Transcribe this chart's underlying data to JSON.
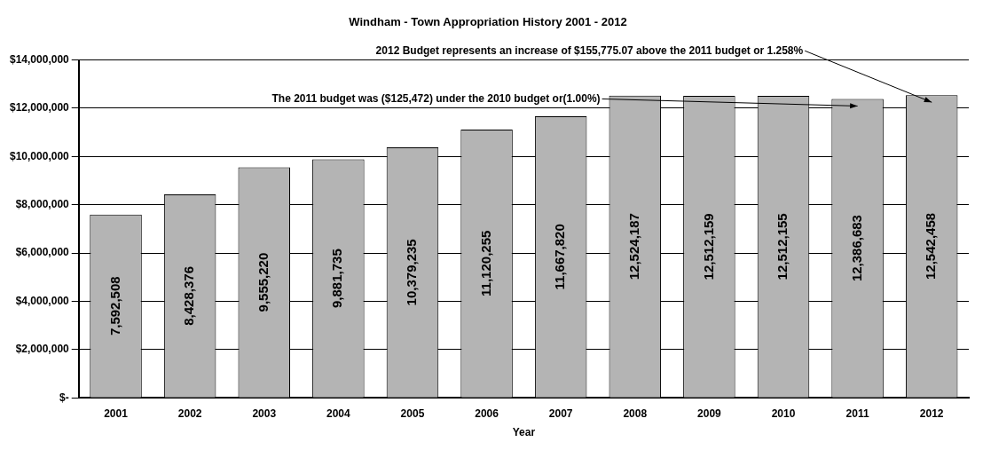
{
  "chart_data": {
    "type": "bar",
    "title": "Windham - Town Appropriation History 2001 - 2012",
    "xlabel": "Year",
    "categories": [
      "2001",
      "2002",
      "2003",
      "2004",
      "2005",
      "2006",
      "2007",
      "2008",
      "2009",
      "2010",
      "2011",
      "2012"
    ],
    "values": [
      7592508,
      8428376,
      9555220,
      9881735,
      10379235,
      11120255,
      11667820,
      12524187,
      12512159,
      12512155,
      12386683,
      12542458
    ],
    "color": "#b4b4b4",
    "ylim": [
      0,
      14000000
    ],
    "yticks": [
      {
        "value": 0,
        "label": "$-"
      },
      {
        "value": 2000000,
        "label": "$2,000,000"
      },
      {
        "value": 4000000,
        "label": "$4,000,000"
      },
      {
        "value": 6000000,
        "label": "$6,000,000"
      },
      {
        "value": 8000000,
        "label": "$8,000,000"
      },
      {
        "value": 10000000,
        "label": "$10,000,000"
      },
      {
        "value": 12000000,
        "label": "$12,000,000"
      },
      {
        "value": 14000000,
        "label": "$14,000,000"
      }
    ],
    "grid": "y",
    "legend": false,
    "value_labels": [
      "7,592,508",
      "8,428,376",
      "9,555,220",
      "9,881,735",
      "10,379,235",
      "11,120,255",
      "11,667,820",
      "12,524,187",
      "12,512,159",
      "12,512,155",
      "12,386,683",
      "12,542,458"
    ],
    "annotations": [
      {
        "text": "The 2011 budget was ($125,472) under the 2010 budget or(1.00%)",
        "x": "2011",
        "y": 12386683
      },
      {
        "text": "2012 Budget represents an increase of $155,775.07 above the 2011 budget or 1.258%",
        "x": "2012",
        "y": 12542458
      }
    ]
  }
}
